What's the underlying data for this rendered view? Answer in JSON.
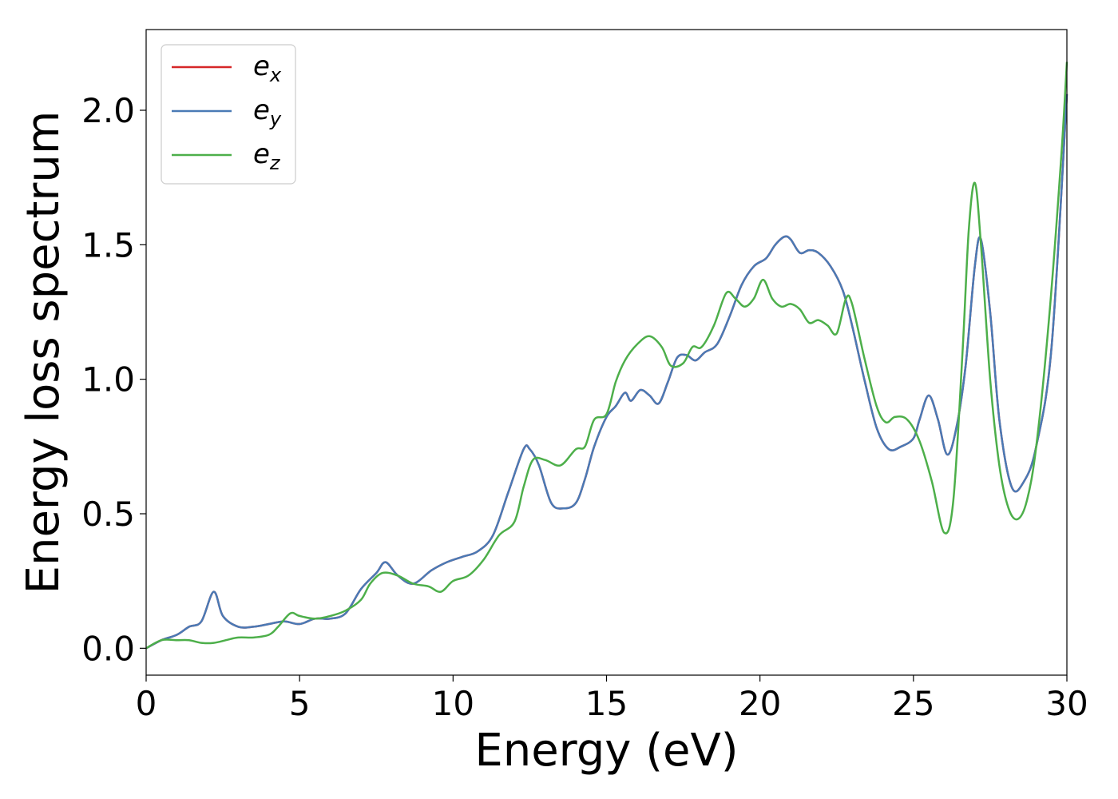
{
  "chart_data": {
    "type": "line",
    "xlabel": "Energy (eV)",
    "ylabel": "Energy loss spectrum",
    "xlim": [
      0,
      30
    ],
    "ylim": [
      -0.1,
      2.3
    ],
    "xticks": [
      0,
      5,
      10,
      15,
      20,
      25,
      30
    ],
    "xtick_labels": [
      "0",
      "5",
      "10",
      "15",
      "20",
      "25",
      "30"
    ],
    "yticks": [
      0.0,
      0.5,
      1.0,
      1.5,
      2.0
    ],
    "ytick_labels": [
      "0.0",
      "0.5",
      "1.0",
      "1.5",
      "2.0"
    ],
    "grid": false,
    "legend_position": "top-left",
    "series": [
      {
        "name": "e_x",
        "legend_base": "e",
        "legend_sub": "x",
        "color": "#d62728",
        "x": [
          0,
          0.5,
          1,
          1.4,
          1.8,
          2.2,
          2.5,
          3,
          3.5,
          4,
          4.5,
          5,
          5.5,
          6,
          6.5,
          7,
          7.5,
          7.8,
          8.2,
          8.7,
          9.3,
          9.8,
          10.3,
          10.8,
          11.3,
          11.8,
          12.3,
          12.5,
          12.8,
          13.2,
          13.6,
          14,
          14.3,
          14.6,
          15,
          15.3,
          15.6,
          15.8,
          16.1,
          16.4,
          16.7,
          17,
          17.3,
          17.6,
          17.9,
          18.2,
          18.6,
          19,
          19.4,
          19.8,
          20.2,
          20.5,
          20.8,
          21,
          21.3,
          21.6,
          21.9,
          22.3,
          22.7,
          23,
          23.4,
          23.8,
          24.2,
          24.6,
          25,
          25.2,
          25.5,
          25.8,
          26.1,
          26.4,
          26.7,
          27,
          27.2,
          27.5,
          27.8,
          28.2,
          28.6,
          29,
          29.5,
          30
        ],
        "y": [
          0.0,
          0.03,
          0.05,
          0.08,
          0.1,
          0.21,
          0.12,
          0.08,
          0.08,
          0.09,
          0.1,
          0.09,
          0.11,
          0.11,
          0.13,
          0.22,
          0.28,
          0.32,
          0.27,
          0.24,
          0.29,
          0.32,
          0.34,
          0.36,
          0.42,
          0.58,
          0.74,
          0.74,
          0.68,
          0.54,
          0.52,
          0.54,
          0.63,
          0.75,
          0.86,
          0.9,
          0.95,
          0.92,
          0.96,
          0.94,
          0.91,
          0.99,
          1.08,
          1.09,
          1.07,
          1.1,
          1.13,
          1.23,
          1.35,
          1.42,
          1.45,
          1.5,
          1.53,
          1.52,
          1.47,
          1.48,
          1.47,
          1.42,
          1.33,
          1.2,
          1.0,
          0.82,
          0.74,
          0.75,
          0.78,
          0.85,
          0.94,
          0.85,
          0.72,
          0.82,
          1.05,
          1.42,
          1.52,
          1.25,
          0.85,
          0.6,
          0.62,
          0.75,
          1.12,
          2.06
        ]
      },
      {
        "name": "e_y",
        "legend_base": "e",
        "legend_sub": "y",
        "color": "#4a7ab5",
        "x": [
          0,
          0.5,
          1,
          1.4,
          1.8,
          2.2,
          2.5,
          3,
          3.5,
          4,
          4.5,
          5,
          5.5,
          6,
          6.5,
          7,
          7.5,
          7.8,
          8.2,
          8.7,
          9.3,
          9.8,
          10.3,
          10.8,
          11.3,
          11.8,
          12.3,
          12.5,
          12.8,
          13.2,
          13.6,
          14,
          14.3,
          14.6,
          15,
          15.3,
          15.6,
          15.8,
          16.1,
          16.4,
          16.7,
          17,
          17.3,
          17.6,
          17.9,
          18.2,
          18.6,
          19,
          19.4,
          19.8,
          20.2,
          20.5,
          20.8,
          21,
          21.3,
          21.6,
          21.9,
          22.3,
          22.7,
          23,
          23.4,
          23.8,
          24.2,
          24.6,
          25,
          25.2,
          25.5,
          25.8,
          26.1,
          26.4,
          26.7,
          27,
          27.2,
          27.5,
          27.8,
          28.2,
          28.6,
          29,
          29.5,
          30
        ],
        "y": [
          0.0,
          0.03,
          0.05,
          0.08,
          0.1,
          0.21,
          0.12,
          0.08,
          0.08,
          0.09,
          0.1,
          0.09,
          0.11,
          0.11,
          0.13,
          0.22,
          0.28,
          0.32,
          0.27,
          0.24,
          0.29,
          0.32,
          0.34,
          0.36,
          0.42,
          0.58,
          0.74,
          0.74,
          0.68,
          0.54,
          0.52,
          0.54,
          0.63,
          0.75,
          0.86,
          0.9,
          0.95,
          0.92,
          0.96,
          0.94,
          0.91,
          0.99,
          1.08,
          1.09,
          1.07,
          1.1,
          1.13,
          1.23,
          1.35,
          1.42,
          1.45,
          1.5,
          1.53,
          1.52,
          1.47,
          1.48,
          1.47,
          1.42,
          1.33,
          1.2,
          1.0,
          0.82,
          0.74,
          0.75,
          0.78,
          0.85,
          0.94,
          0.85,
          0.72,
          0.82,
          1.05,
          1.42,
          1.52,
          1.25,
          0.85,
          0.6,
          0.62,
          0.75,
          1.12,
          2.06
        ]
      },
      {
        "name": "e_z",
        "legend_base": "e",
        "legend_sub": "z",
        "color": "#4daf4a",
        "x": [
          0,
          0.5,
          1,
          1.4,
          1.8,
          2.2,
          2.6,
          3,
          3.5,
          4,
          4.3,
          4.7,
          5,
          5.5,
          6,
          6.5,
          7,
          7.3,
          7.7,
          8.2,
          8.7,
          9.2,
          9.6,
          10,
          10.5,
          11,
          11.5,
          12,
          12.3,
          12.6,
          13,
          13.5,
          14,
          14.3,
          14.6,
          15,
          15.3,
          15.6,
          16,
          16.4,
          16.8,
          17.1,
          17.5,
          17.8,
          18.1,
          18.5,
          18.9,
          19.2,
          19.5,
          19.8,
          20.1,
          20.4,
          20.7,
          21,
          21.3,
          21.6,
          21.9,
          22.2,
          22.5,
          22.8,
          23,
          23.4,
          23.8,
          24.1,
          24.4,
          24.8,
          25.2,
          25.6,
          26,
          26.3,
          26.6,
          26.8,
          27,
          27.2,
          27.5,
          27.8,
          28.1,
          28.4,
          28.7,
          29,
          29.4,
          29.8,
          30
        ],
        "y": [
          0.0,
          0.03,
          0.03,
          0.03,
          0.02,
          0.02,
          0.03,
          0.04,
          0.04,
          0.05,
          0.08,
          0.13,
          0.12,
          0.11,
          0.12,
          0.14,
          0.18,
          0.24,
          0.28,
          0.27,
          0.24,
          0.23,
          0.21,
          0.25,
          0.27,
          0.33,
          0.42,
          0.47,
          0.6,
          0.7,
          0.7,
          0.68,
          0.74,
          0.75,
          0.85,
          0.87,
          0.99,
          1.07,
          1.13,
          1.16,
          1.12,
          1.05,
          1.06,
          1.12,
          1.12,
          1.2,
          1.32,
          1.3,
          1.27,
          1.3,
          1.37,
          1.3,
          1.27,
          1.28,
          1.26,
          1.21,
          1.22,
          1.2,
          1.17,
          1.3,
          1.28,
          1.08,
          0.9,
          0.84,
          0.86,
          0.85,
          0.77,
          0.62,
          0.43,
          0.55,
          1.1,
          1.55,
          1.73,
          1.5,
          1.0,
          0.68,
          0.52,
          0.48,
          0.55,
          0.75,
          1.2,
          1.8,
          2.18
        ]
      }
    ]
  }
}
